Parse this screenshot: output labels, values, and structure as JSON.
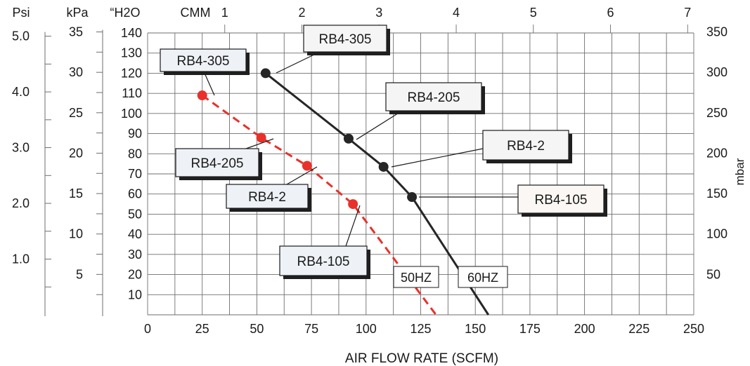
{
  "chart_data": {
    "type": "line",
    "title": "",
    "xlabel": "AIR FLOW RATE (SCFM)",
    "x_axis": {
      "range": [
        0,
        250
      ],
      "ticks": [
        "0",
        "25",
        "50",
        "75",
        "100",
        "125",
        "150",
        "175",
        "200",
        "225",
        "250"
      ]
    },
    "cmm_axis": {
      "label": "CMM",
      "ticks": [
        "1",
        "2",
        "3",
        "4",
        "5",
        "6",
        "7"
      ]
    },
    "y_axis": {
      "label": "“H2O",
      "range": [
        0,
        140
      ],
      "ticks": [
        "10",
        "20",
        "30",
        "40",
        "50",
        "60",
        "70",
        "80",
        "90",
        "100",
        "110",
        "120",
        "130",
        "140"
      ]
    },
    "kpa_axis": {
      "label": "kPa",
      "ticks": [
        "5",
        "10",
        "15",
        "20",
        "25",
        "30",
        "35"
      ]
    },
    "psi_axis": {
      "label": "Psi",
      "ticks": [
        "1.0",
        "2.0",
        "3.0",
        "4.0",
        "5.0"
      ]
    },
    "mbar_axis": {
      "label": "mbar",
      "ticks": [
        "50",
        "100",
        "150",
        "200",
        "250",
        "300",
        "350"
      ]
    },
    "grid": true,
    "colors": {
      "50hz": "#e8312a",
      "60hz": "#262626",
      "grid": "#6e6e6e"
    },
    "series": [
      {
        "name": "50HZ",
        "color": "#e8312a",
        "dashed": true,
        "curve": [
          [
            25,
            109
          ],
          [
            52,
            88
          ],
          [
            73,
            74
          ],
          [
            94,
            55
          ],
          [
            132,
            0
          ]
        ],
        "points": [
          {
            "model": "RB4-305",
            "x": 25,
            "y": 109
          },
          {
            "model": "RB4-205",
            "x": 52,
            "y": 88
          },
          {
            "model": "RB4-2",
            "x": 73,
            "y": 74
          },
          {
            "model": "RB4-105",
            "x": 94,
            "y": 55
          }
        ]
      },
      {
        "name": "60HZ",
        "color": "#262626",
        "dashed": false,
        "curve": [
          [
            54,
            120
          ],
          [
            92,
            87.5
          ],
          [
            108,
            73.5
          ],
          [
            121,
            58.5
          ],
          [
            156,
            0
          ]
        ],
        "points": [
          {
            "model": "RB4-305",
            "x": 54,
            "y": 120
          },
          {
            "model": "RB4-205",
            "x": 92,
            "y": 87.5
          },
          {
            "model": "RB4-2",
            "x": 108,
            "y": 73.5
          },
          {
            "model": "RB4-105",
            "x": 121,
            "y": 58.5
          }
        ]
      }
    ],
    "series_labels": [
      "50HZ",
      "60HZ"
    ]
  }
}
